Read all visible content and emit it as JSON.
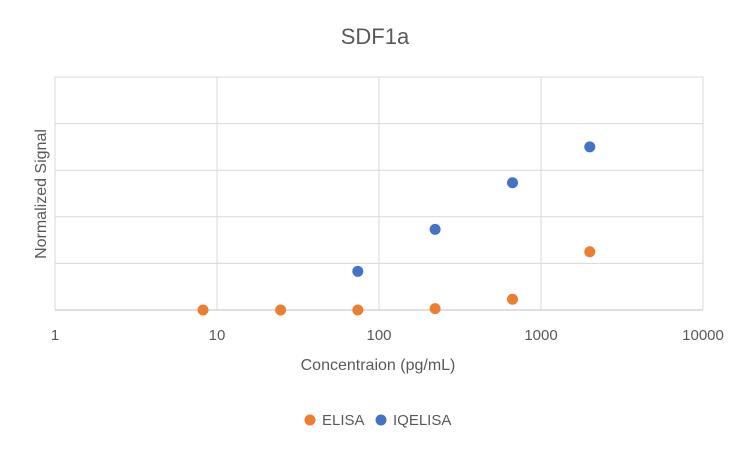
{
  "chart_data": {
    "type": "scatter",
    "title": "SDF1a",
    "xlabel": "Concentraion (pg/mL)",
    "ylabel": "Normalized Signal",
    "xscale": "log",
    "xlim": [
      1,
      10000
    ],
    "ylim": [
      0,
      5
    ],
    "x_ticks": [
      "1",
      "10",
      "100",
      "1000",
      "10000"
    ],
    "grid": true,
    "legend_position": "bottom",
    "series": [
      {
        "name": "ELISA",
        "color": "#ED7D31",
        "points": [
          {
            "x": 8.2,
            "y": 0.0
          },
          {
            "x": 24.7,
            "y": 0.0
          },
          {
            "x": 74,
            "y": 0.0
          },
          {
            "x": 222,
            "y": 0.03
          },
          {
            "x": 667,
            "y": 0.23
          },
          {
            "x": 2000,
            "y": 1.25
          }
        ]
      },
      {
        "name": "IQELISA",
        "color": "#4472C4",
        "points": [
          {
            "x": 74,
            "y": 0.83
          },
          {
            "x": 222,
            "y": 1.73
          },
          {
            "x": 667,
            "y": 2.73
          },
          {
            "x": 2000,
            "y": 3.5
          }
        ]
      }
    ]
  }
}
